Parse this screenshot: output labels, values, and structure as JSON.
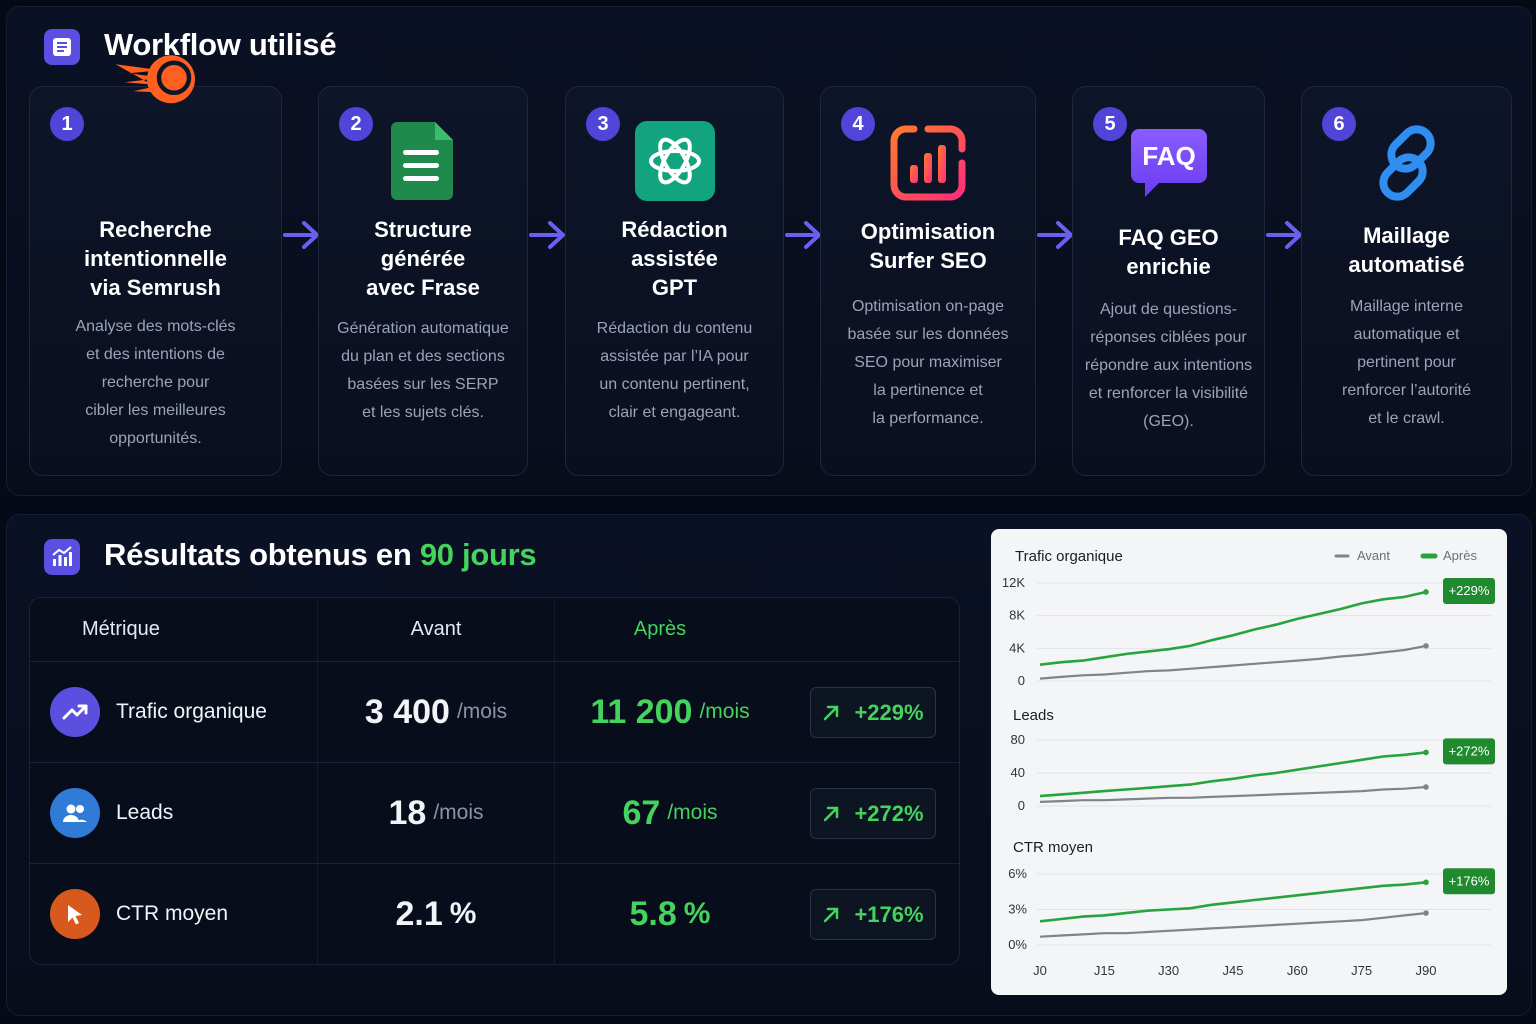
{
  "workflow": {
    "title": "Workflow utilisé",
    "steps": [
      {
        "num": "1",
        "title_lines": [
          "Recherche",
          "intentionnelle",
          "via Semrush"
        ],
        "desc_lines": [
          "Analyse des mots-clés",
          "et des intentions de",
          "recherche pour",
          "cibler les meilleures",
          "opportunités."
        ],
        "icon": "semrush-logo-icon"
      },
      {
        "num": "2",
        "title_lines": [
          "Structure",
          "générée",
          "avec Frase"
        ],
        "desc_lines": [
          "Génération automatique",
          "du plan et des sections",
          "basées sur les SERP",
          "et les sujets clés."
        ],
        "icon": "frase-document-icon"
      },
      {
        "num": "3",
        "title_lines": [
          "Rédaction",
          "assistée",
          "GPT"
        ],
        "desc_lines": [
          "Rédaction du contenu",
          "assistée par l’IA pour",
          "un contenu pertinent,",
          "clair et engageant."
        ],
        "icon": "chatgpt-logo-icon"
      },
      {
        "num": "4",
        "title_lines": [
          "Optimisation",
          "Surfer SEO"
        ],
        "desc_lines": [
          "Optimisation on-page",
          "basée sur les données",
          "SEO pour maximiser",
          "la pertinence et",
          "la performance."
        ],
        "icon": "surfer-seo-logo-icon"
      },
      {
        "num": "5",
        "title_lines": [
          "FAQ GEO",
          "enrichie"
        ],
        "desc_lines": [
          "Ajout de questions-",
          "réponses ciblées pour",
          "répondre aux intentions",
          "et renforcer la visibilité",
          "(GEO)."
        ],
        "icon": "faq-bubble-icon",
        "icon_text": "FAQ"
      },
      {
        "num": "6",
        "title_lines": [
          "Maillage",
          "automatisé"
        ],
        "desc_lines": [
          "Maillage interne",
          "automatique et",
          "pertinent pour",
          "renforcer l’autorité",
          "et le crawl."
        ],
        "icon": "chain-link-icon"
      }
    ]
  },
  "results": {
    "title_main": "Résultats obtenus en ",
    "title_accent": "90 jours",
    "headers": {
      "metric": "Métrique",
      "before": "Avant",
      "after": "Après"
    },
    "rows": [
      {
        "name": "Trafic organique",
        "before": "3 400",
        "before_unit": "/mois",
        "after": "11 200",
        "after_unit": "/mois",
        "change": "+229%",
        "icon": "trending-up-icon",
        "icon_color": "#5b4fe0"
      },
      {
        "name": "Leads",
        "before": "18",
        "before_unit": "/mois",
        "after": "67",
        "after_unit": "/mois",
        "change": "+272%",
        "icon": "users-icon",
        "icon_color": "#2f7bd6"
      },
      {
        "name": "CTR moyen",
        "before": "2.1",
        "before_unit": "%",
        "after": "5.8",
        "after_unit": "%",
        "change": "+176%",
        "icon": "cursor-icon",
        "icon_color": "#d8591d"
      }
    ]
  },
  "chart_data": {
    "type": "line",
    "legend": {
      "before": "Avant",
      "after": "Après",
      "placement": "top-right"
    },
    "colors": {
      "before": "#80838c",
      "after": "#27a43c",
      "badge": "#1f8a2e"
    },
    "x_labels": [
      "J0",
      "J15",
      "J30",
      "J45",
      "J60",
      "J75",
      "J90"
    ],
    "panels": [
      {
        "title": "Trafic organique",
        "y_ticks": [
          "12K",
          "8K",
          "4K",
          "0"
        ],
        "ylim": [
          0,
          12000
        ],
        "badge": "+229%",
        "series": [
          {
            "name": "Avant",
            "x": [
              0,
              5,
              10,
              15,
              20,
              25,
              30,
              35,
              40,
              45,
              50,
              55,
              60,
              65,
              70,
              75,
              80,
              85,
              90
            ],
            "values": [
              300,
              500,
              700,
              800,
              1000,
              1200,
              1300,
              1500,
              1700,
              1900,
              2100,
              2300,
              2500,
              2700,
              3000,
              3200,
              3500,
              3800,
              4300
            ]
          },
          {
            "name": "Après",
            "x": [
              0,
              5,
              10,
              15,
              20,
              25,
              30,
              35,
              40,
              45,
              50,
              55,
              60,
              65,
              70,
              75,
              80,
              85,
              90
            ],
            "values": [
              2000,
              2300,
              2500,
              2900,
              3300,
              3600,
              3900,
              4300,
              5000,
              5600,
              6300,
              6900,
              7600,
              8200,
              8800,
              9500,
              10000,
              10300,
              10900
            ]
          }
        ]
      },
      {
        "title": "Leads",
        "y_ticks": [
          "80",
          "40",
          "0"
        ],
        "ylim": [
          0,
          80
        ],
        "badge": "+272%",
        "series": [
          {
            "name": "Avant",
            "x": [
              0,
              5,
              10,
              15,
              20,
              25,
              30,
              35,
              40,
              45,
              50,
              55,
              60,
              65,
              70,
              75,
              80,
              85,
              90
            ],
            "values": [
              5,
              6,
              7,
              7,
              8,
              9,
              10,
              10,
              11,
              12,
              13,
              14,
              15,
              16,
              17,
              18,
              20,
              21,
              23
            ]
          },
          {
            "name": "Après",
            "x": [
              0,
              5,
              10,
              15,
              20,
              25,
              30,
              35,
              40,
              45,
              50,
              55,
              60,
              65,
              70,
              75,
              80,
              85,
              90
            ],
            "values": [
              12,
              14,
              16,
              18,
              20,
              22,
              24,
              26,
              30,
              33,
              37,
              40,
              44,
              48,
              52,
              56,
              60,
              62,
              65
            ]
          }
        ]
      },
      {
        "title": "CTR moyen",
        "y_ticks": [
          "6%",
          "3%",
          "0%"
        ],
        "ylim": [
          0,
          6
        ],
        "badge": "+176%",
        "series": [
          {
            "name": "Avant",
            "x": [
              0,
              5,
              10,
              15,
              20,
              25,
              30,
              35,
              40,
              45,
              50,
              55,
              60,
              65,
              70,
              75,
              80,
              85,
              90
            ],
            "values": [
              0.7,
              0.8,
              0.9,
              1.0,
              1.0,
              1.1,
              1.2,
              1.3,
              1.4,
              1.5,
              1.6,
              1.7,
              1.8,
              1.9,
              2.0,
              2.1,
              2.3,
              2.5,
              2.7
            ]
          },
          {
            "name": "Après",
            "x": [
              0,
              5,
              10,
              15,
              20,
              25,
              30,
              35,
              40,
              45,
              50,
              55,
              60,
              65,
              70,
              75,
              80,
              85,
              90
            ],
            "values": [
              2.0,
              2.2,
              2.4,
              2.5,
              2.7,
              2.9,
              3.0,
              3.1,
              3.4,
              3.6,
              3.8,
              4.0,
              4.2,
              4.4,
              4.6,
              4.8,
              5.0,
              5.1,
              5.3
            ]
          }
        ]
      }
    ]
  }
}
